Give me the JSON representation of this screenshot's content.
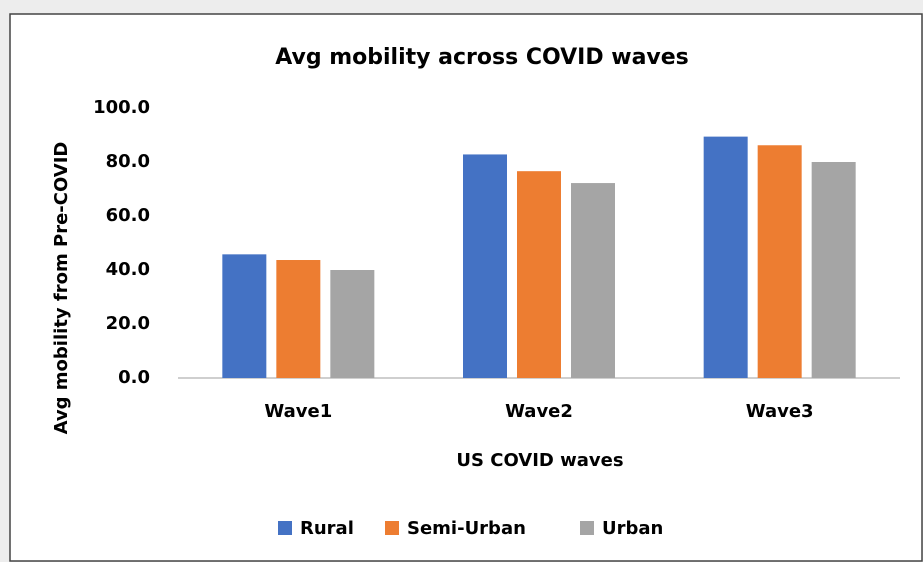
{
  "chart_data": {
    "type": "bar",
    "title": "Avg mobility across COVID waves",
    "x_label": "US COVID waves",
    "y_label": "Avg mobility from Pre-COVID",
    "categories": [
      "Wave1",
      "Wave2",
      "Wave3"
    ],
    "series": [
      {
        "name": "Rural",
        "color": "#4472c4",
        "values": [
          45.8,
          82.8,
          89.4
        ]
      },
      {
        "name": "Semi-Urban",
        "color": "#ed7d31",
        "values": [
          43.7,
          76.6,
          86.2
        ]
      },
      {
        "name": "Urban",
        "color": "#a5a5a5",
        "values": [
          40.0,
          72.2,
          80.0
        ]
      }
    ],
    "ylim": [
      0,
      100
    ],
    "yticks": [
      {
        "value": 0,
        "label": "0.0"
      },
      {
        "value": 20,
        "label": "20.0"
      },
      {
        "value": 40,
        "label": "40.0"
      },
      {
        "value": 60,
        "label": "60.0"
      },
      {
        "value": 80,
        "label": "80.0"
      },
      {
        "value": 100,
        "label": "100.0"
      }
    ],
    "grid": false,
    "legend": "bottom"
  }
}
